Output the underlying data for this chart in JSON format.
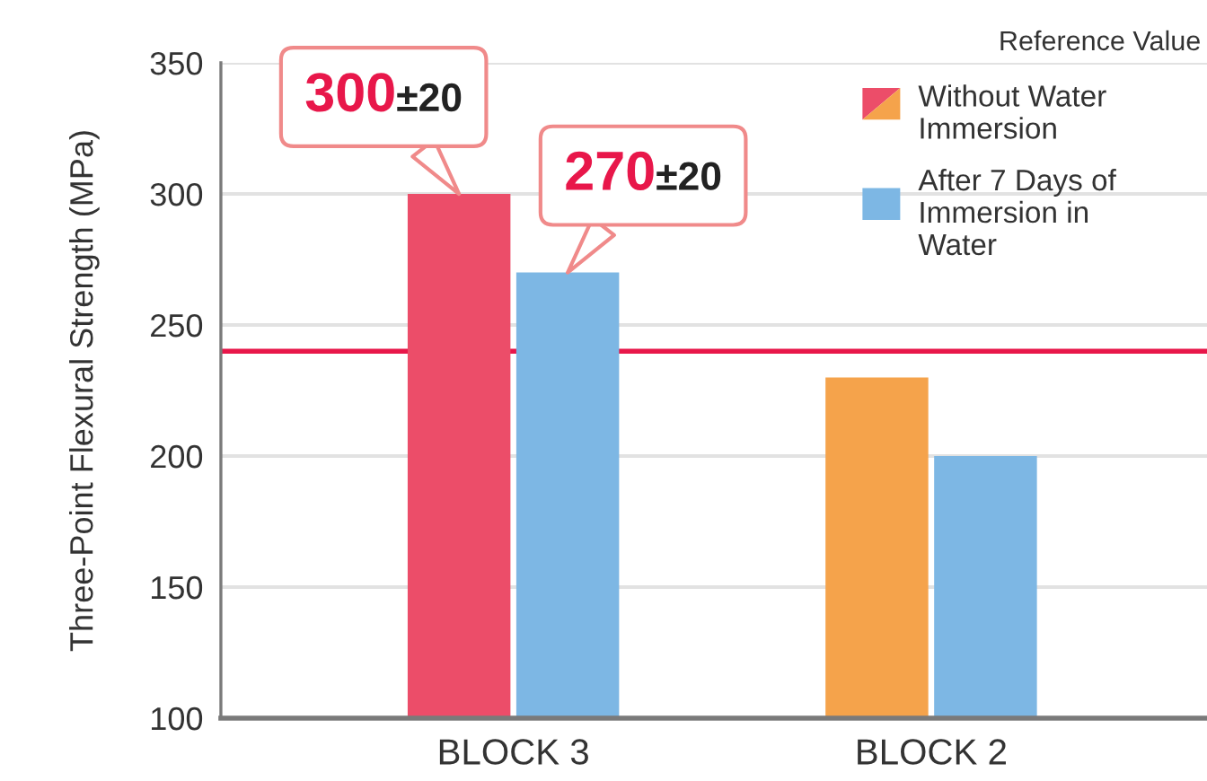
{
  "chart_data": {
    "type": "bar",
    "categories": [
      "BLOCK 3",
      "BLOCK 2"
    ],
    "series": [
      {
        "name": "Without Water Immersion",
        "colors": [
          "#ec4d69",
          "#f5a34b"
        ],
        "values": [
          300,
          230
        ],
        "value_labels": [
          "300±20",
          null
        ]
      },
      {
        "name": "After 7 Days of Immersion in Water",
        "color": "#7db7e4",
        "values": [
          270,
          200
        ],
        "value_labels": [
          "270±20",
          null
        ]
      }
    ],
    "ylabel": "Three-Point Flexural Strength (MPa)",
    "ylim": [
      100,
      350
    ],
    "yticks": [
      100,
      150,
      200,
      250,
      300,
      350
    ],
    "grid": "y",
    "legend": "top right",
    "ref_lines": [
      {
        "axis": "y",
        "value": 240,
        "color": "#e8174a"
      }
    ],
    "annotations": [
      "Reference Value"
    ]
  }
}
